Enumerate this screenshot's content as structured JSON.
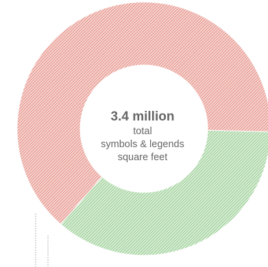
{
  "chart_data": {
    "type": "pie",
    "variant": "donut",
    "center": {
      "value": "3.4 million",
      "lines": [
        "total",
        "symbols & legends",
        "square feet"
      ]
    },
    "slices": [
      {
        "value": 0.64,
        "color": "#e07a6f",
        "pattern": "diagonal-hatch"
      },
      {
        "value": 0.36,
        "color": "#7fc07a",
        "pattern": "diagonal-hatch"
      }
    ],
    "leaders": [
      {
        "style": "dotted"
      },
      {
        "style": "dotted"
      }
    ]
  }
}
